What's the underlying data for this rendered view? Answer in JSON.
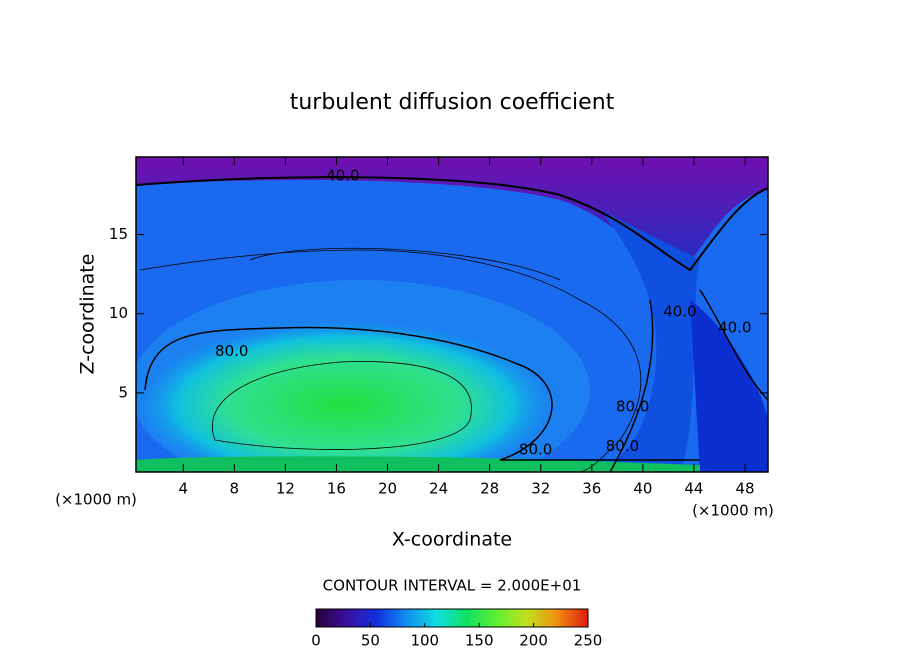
{
  "chart_data": {
    "type": "contour",
    "title": "turbulent diffusion coefficient",
    "x_label": "X-coordinate",
    "y_label": "Z-coordinate",
    "x_unit": "(×1000 m)",
    "xlim": [
      0.3,
      49.8
    ],
    "ylim": [
      0,
      19.9
    ],
    "xticks": [
      4,
      8,
      12,
      16,
      20,
      24,
      28,
      32,
      36,
      40,
      44,
      48
    ],
    "yticks": [
      5,
      10,
      15
    ],
    "contour_interval_text": "CONTOUR INTERVAL = 2.000E+01",
    "contour_labels": [
      {
        "value": 40,
        "label": "40.0",
        "x": 16.5,
        "y": 18.7
      },
      {
        "value": 80,
        "label": "80.0",
        "x": 7.8,
        "y": 7.6
      },
      {
        "value": 80,
        "label": "80.0",
        "x": 31.6,
        "y": 1.4
      },
      {
        "value": 40,
        "label": "40.0",
        "x": 42.9,
        "y": 10.1
      },
      {
        "value": 40,
        "label": "40.0",
        "x": 47.2,
        "y": 9.1
      },
      {
        "value": 80,
        "label": "80.0",
        "x": 39.2,
        "y": 4.1
      },
      {
        "value": 80,
        "label": "80.0",
        "x": 38.4,
        "y": 1.6
      }
    ],
    "colorbar": {
      "lim": [
        0,
        250
      ],
      "ticks": [
        0,
        50,
        100,
        150,
        200,
        250
      ],
      "colors": [
        "#2a0040",
        "#3a10a0",
        "#1030e0",
        "#1090f0",
        "#10e0e0",
        "#10e060",
        "#60f030",
        "#c0e020",
        "#f09010",
        "#e02010"
      ]
    }
  }
}
